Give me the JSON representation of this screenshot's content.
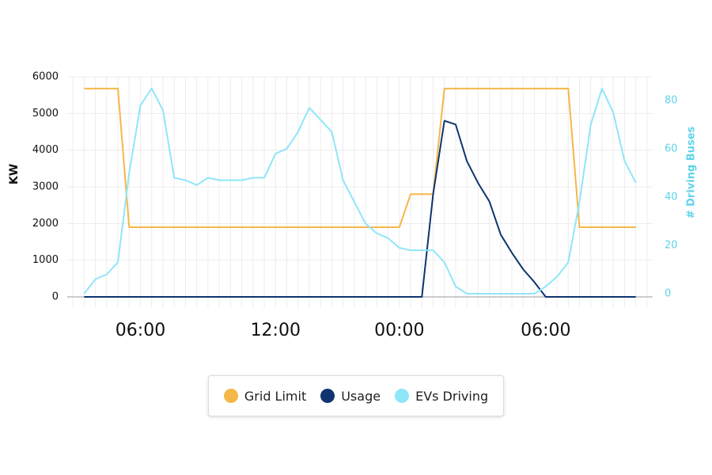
{
  "chart_data": {
    "type": "line",
    "categories": [
      null,
      null,
      null,
      null,
      null,
      null,
      "06:00",
      null,
      null,
      null,
      null,
      null,
      null,
      null,
      null,
      null,
      null,
      null,
      "12:00",
      null,
      null,
      null,
      null,
      null,
      null,
      null,
      null,
      null,
      null,
      "00:00",
      null,
      null,
      null,
      null,
      null,
      null,
      null,
      null,
      null,
      null,
      null,
      null,
      "06:00",
      null,
      null,
      null,
      null,
      null,
      null,
      null,
      null,
      null
    ],
    "y_label": "KW",
    "y2_label": "# Driving Buses",
    "ylim": [
      0,
      6000
    ],
    "yticks": [
      0,
      1000,
      2000,
      3000,
      4000,
      5000,
      6000
    ],
    "y2lim": [
      -1.3,
      89.8
    ],
    "y2ticks": [
      0,
      20,
      40,
      60,
      80
    ],
    "grid": true,
    "series": [
      {
        "name": "Grid Limit",
        "color": "#f5b748",
        "values": [
          null,
          5680,
          5680,
          5680,
          5680,
          1900,
          1900,
          1900,
          1900,
          1900,
          1900,
          1900,
          1900,
          1900,
          1900,
          1900,
          1900,
          1900,
          1900,
          1900,
          1900,
          1900,
          1900,
          1900,
          1900,
          1900,
          1900,
          1900,
          1900,
          1900,
          2800,
          2800,
          2800,
          5680,
          5680,
          5680,
          5680,
          5680,
          5680,
          5680,
          5680,
          5680,
          5680,
          5680,
          5680,
          1900,
          1900,
          1900,
          1900,
          1900,
          1900,
          null
        ]
      },
      {
        "name": "Usage",
        "color": "#0f3470",
        "values": [
          null,
          0,
          0,
          0,
          0,
          0,
          0,
          0,
          0,
          0,
          0,
          0,
          0,
          0,
          0,
          0,
          0,
          0,
          0,
          0,
          0,
          0,
          0,
          0,
          0,
          0,
          0,
          0,
          0,
          0,
          0,
          0,
          2800,
          4800,
          4700,
          3700,
          3100,
          2600,
          1700,
          1200,
          750,
          400,
          0,
          0,
          0,
          0,
          0,
          0,
          0,
          0,
          0,
          null
        ]
      },
      {
        "name": "EVs Driving",
        "color": "#8fe6f8",
        "axis": "y2",
        "values": [
          null,
          0,
          6,
          8,
          13,
          50,
          78,
          85,
          76,
          48,
          47,
          45,
          48,
          47,
          47,
          47,
          48,
          48,
          58,
          60,
          67,
          77,
          72,
          67,
          47,
          38,
          29,
          25,
          23,
          19,
          18,
          18,
          18,
          13,
          3,
          0,
          0,
          0,
          0,
          0,
          0,
          0,
          3,
          7,
          13,
          38,
          70,
          85,
          75,
          55,
          46,
          null
        ]
      }
    ]
  }
}
